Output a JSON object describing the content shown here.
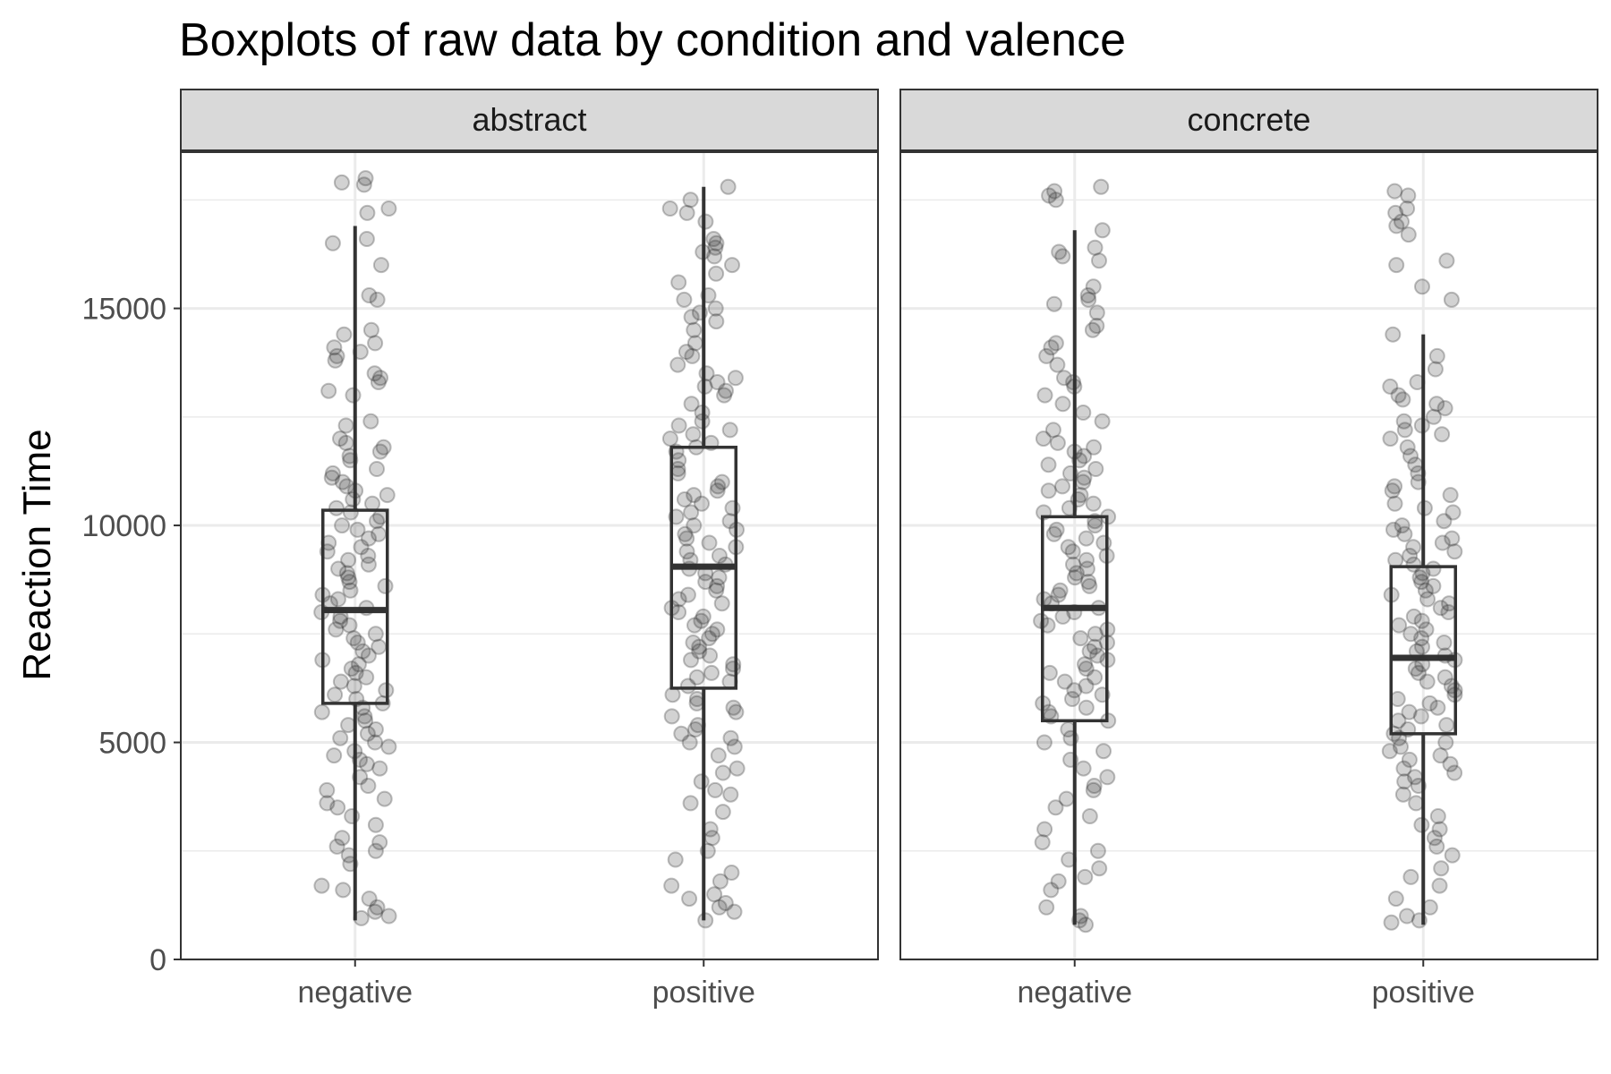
{
  "chart_data": {
    "type": "boxplot",
    "title": "Boxplots of raw data by condition and valence",
    "xlabel": "",
    "ylabel": "Reaction Time",
    "ylim": [
      0,
      18600
    ],
    "y_ticks": [
      0,
      5000,
      10000,
      15000
    ],
    "y_tick_labels": [
      "0",
      "5000",
      "10000",
      "15000"
    ],
    "categories": [
      "negative",
      "positive"
    ],
    "grid": true,
    "legend": "none",
    "colors": {
      "box": "#333333",
      "points": "#333333",
      "strip": "#d9d9d9",
      "grid": "#ebebeb"
    },
    "facets": [
      {
        "label": "abstract",
        "boxes": [
          {
            "category": "negative",
            "whisker_low": 900,
            "q1": 5900,
            "median": 8050,
            "q3": 10350,
            "whisker_high": 16900,
            "points": [
              18000,
              17900,
              17850,
              17300,
              17200,
              16600,
              16500,
              16000,
              15300,
              15200,
              14500,
              14400,
              14200,
              14100,
              14000,
              13900,
              13800,
              13500,
              13400,
              13300,
              13100,
              13000,
              12400,
              12300,
              12000,
              11900,
              11800,
              11700,
              11600,
              11500,
              11300,
              11200,
              11100,
              11000,
              10900,
              10800,
              10700,
              10600,
              10500,
              10400,
              10300,
              10200,
              10100,
              10000,
              9900,
              9800,
              9700,
              9600,
              9500,
              9400,
              9300,
              9200,
              9100,
              9000,
              8900,
              8800,
              8700,
              8600,
              8500,
              8400,
              8300,
              8200,
              8100,
              8000,
              7900,
              7800,
              7700,
              7600,
              7500,
              7400,
              7300,
              7200,
              7100,
              7000,
              6900,
              6800,
              6700,
              6600,
              6500,
              6400,
              6300,
              6200,
              6100,
              6000,
              5900,
              5800,
              5700,
              5600,
              5500,
              5400,
              5300,
              5200,
              5100,
              5000,
              4900,
              4800,
              4700,
              4600,
              4500,
              4400,
              4200,
              4000,
              3900,
              3700,
              3600,
              3500,
              3300,
              3100,
              2800,
              2700,
              2600,
              2500,
              2400,
              2200,
              1700,
              1600,
              1400,
              1200,
              1100,
              1000,
              950
            ]
          },
          {
            "category": "positive",
            "whisker_low": 900,
            "q1": 6250,
            "median": 9050,
            "q3": 11800,
            "whisker_high": 17800,
            "points": [
              17800,
              17500,
              17300,
              17200,
              17000,
              16600,
              16500,
              16400,
              16300,
              16200,
              16000,
              15800,
              15600,
              15300,
              15200,
              15000,
              14900,
              14800,
              14700,
              14500,
              14200,
              14000,
              13900,
              13700,
              13500,
              13400,
              13300,
              13200,
              13100,
              13000,
              12800,
              12600,
              12400,
              12300,
              12200,
              12100,
              12000,
              11900,
              11800,
              11700,
              11500,
              11300,
              11200,
              11000,
              10900,
              10800,
              10700,
              10600,
              10500,
              10400,
              10300,
              10200,
              10100,
              10000,
              9900,
              9800,
              9700,
              9600,
              9500,
              9400,
              9300,
              9200,
              9100,
              9000,
              8900,
              8800,
              8700,
              8600,
              8500,
              8400,
              8300,
              8200,
              8100,
              8000,
              7900,
              7800,
              7700,
              7600,
              7500,
              7400,
              7300,
              7200,
              7100,
              7000,
              6900,
              6800,
              6700,
              6600,
              6500,
              6400,
              6300,
              6100,
              6000,
              5900,
              5800,
              5700,
              5600,
              5400,
              5300,
              5200,
              5100,
              5000,
              4900,
              4700,
              4400,
              4300,
              4100,
              3900,
              3800,
              3600,
              3400,
              3000,
              2800,
              2500,
              2300,
              2000,
              1800,
              1700,
              1500,
              1400,
              1300,
              1200,
              1100,
              900
            ]
          }
        ]
      },
      {
        "label": "concrete",
        "boxes": [
          {
            "category": "negative",
            "whisker_low": 800,
            "q1": 5500,
            "median": 8100,
            "q3": 10200,
            "whisker_high": 16800,
            "points": [
              17800,
              17700,
              17600,
              17500,
              16800,
              16400,
              16300,
              16200,
              16100,
              15500,
              15300,
              15200,
              15100,
              14900,
              14600,
              14500,
              14200,
              14100,
              13900,
              13700,
              13400,
              13300,
              13200,
              13000,
              12800,
              12600,
              12400,
              12200,
              12000,
              11900,
              11800,
              11700,
              11600,
              11500,
              11400,
              11300,
              11200,
              11100,
              11000,
              10900,
              10800,
              10700,
              10600,
              10500,
              10400,
              10300,
              10200,
              10100,
              10000,
              9900,
              9800,
              9700,
              9600,
              9500,
              9400,
              9300,
              9200,
              9100,
              9000,
              8900,
              8800,
              8700,
              8600,
              8500,
              8400,
              8300,
              8200,
              8100,
              8000,
              7900,
              7800,
              7700,
              7600,
              7500,
              7400,
              7300,
              7200,
              7100,
              7000,
              6900,
              6800,
              6700,
              6600,
              6500,
              6400,
              6300,
              6200,
              6100,
              6000,
              5900,
              5800,
              5700,
              5600,
              5500,
              5300,
              5100,
              5000,
              4800,
              4600,
              4400,
              4200,
              4000,
              3900,
              3700,
              3500,
              3300,
              3000,
              2700,
              2500,
              2300,
              2100,
              1900,
              1800,
              1600,
              1200,
              1000,
              900,
              800
            ]
          },
          {
            "category": "positive",
            "whisker_low": 800,
            "q1": 5200,
            "median": 6950,
            "q3": 9050,
            "whisker_high": 14400,
            "points": [
              17700,
              17600,
              17300,
              17200,
              17000,
              16900,
              16700,
              16100,
              16000,
              15500,
              15200,
              14400,
              13900,
              13600,
              13300,
              13200,
              13000,
              12900,
              12800,
              12700,
              12500,
              12400,
              12300,
              12200,
              12100,
              12000,
              11800,
              11600,
              11400,
              11200,
              11000,
              10900,
              10800,
              10700,
              10500,
              10400,
              10300,
              10100,
              10000,
              9900,
              9800,
              9700,
              9600,
              9500,
              9400,
              9300,
              9200,
              9100,
              9000,
              8900,
              8800,
              8700,
              8600,
              8500,
              8400,
              8300,
              8200,
              8100,
              8000,
              7900,
              7800,
              7700,
              7600,
              7500,
              7400,
              7300,
              7200,
              7100,
              7000,
              6900,
              6800,
              6700,
              6600,
              6500,
              6400,
              6300,
              6200,
              6100,
              6000,
              5900,
              5800,
              5700,
              5600,
              5500,
              5400,
              5300,
              5200,
              5100,
              5000,
              4900,
              4800,
              4700,
              4600,
              4500,
              4400,
              4300,
              4200,
              4100,
              4000,
              3800,
              3600,
              3300,
              3100,
              3000,
              2800,
              2600,
              2400,
              2100,
              1900,
              1700,
              1400,
              1200,
              1000,
              900,
              850
            ]
          }
        ]
      }
    ]
  }
}
